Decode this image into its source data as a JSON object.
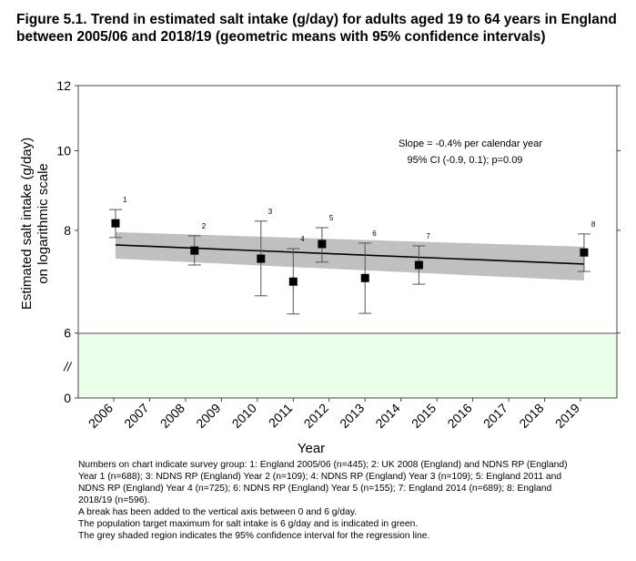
{
  "chart_data": {
    "type": "scatter",
    "title": "Figure 5.1. Trend in estimated salt intake (g/day) for adults aged 19 to 64 years in England between 2005/06 and 2018/19 (geometric means with 95% confidence intervals)",
    "xlabel": "Year",
    "ylabel": "Estimated salt intake (g/day) on logarithmic scale",
    "ylabel_lines": [
      "Estimated salt intake (g/day)",
      "on logarithmic scale"
    ],
    "y_scale": "log",
    "ylim": [
      6,
      12
    ],
    "y_ticks": [
      "12",
      "10",
      "8",
      "6"
    ],
    "y_break_label": "//",
    "y_zero_label": "0",
    "x_ticks": [
      "2006",
      "2007",
      "2008",
      "2009",
      "2010",
      "2011",
      "2012",
      "2013",
      "2014",
      "2015",
      "2016",
      "2017",
      "2018",
      "2019"
    ],
    "points": [
      {
        "label": "1",
        "x": 2006.05,
        "y": 8.16,
        "lo": 7.84,
        "hi": 8.48
      },
      {
        "label": "2",
        "x": 2008.25,
        "y": 7.56,
        "lo": 7.26,
        "hi": 7.88
      },
      {
        "label": "3",
        "x": 2010.1,
        "y": 7.39,
        "lo": 6.66,
        "hi": 8.21
      },
      {
        "label": "4",
        "x": 2011.0,
        "y": 6.93,
        "lo": 6.33,
        "hi": 7.6
      },
      {
        "label": "5",
        "x": 2011.8,
        "y": 7.7,
        "lo": 7.32,
        "hi": 8.06
      },
      {
        "label": "6",
        "x": 2013.0,
        "y": 7.0,
        "lo": 6.34,
        "hi": 7.72
      },
      {
        "label": "7",
        "x": 2014.5,
        "y": 7.26,
        "lo": 6.88,
        "hi": 7.66
      },
      {
        "label": "8",
        "x": 2019.1,
        "y": 7.52,
        "lo": 7.13,
        "hi": 7.92
      }
    ],
    "regression": {
      "x": [
        2006.05,
        2019.1
      ],
      "y": [
        7.68,
        7.28
      ]
    },
    "ci_band": {
      "x": [
        2006.05,
        2019.1
      ],
      "upper": [
        7.96,
        7.64
      ],
      "lower": [
        7.39,
        6.95
      ]
    },
    "target_region": {
      "from": 0,
      "to": 6,
      "color": "#eaffea"
    },
    "band_color": "#c0c0c0",
    "annotation": [
      "Slope = -0.4% per calendar year",
      "95% CI (-0.9, 0.1);   p=0.09"
    ],
    "grid": false
  },
  "notes": [
    "Numbers on chart indicate survey group: 1: England 2005/06 (n=445); 2: UK 2008 (England) and NDNS RP (England) Year 1 (n=688); 3: NDNS RP (England) Year 2 (n=109); 4: NDNS RP (England) Year 3 (n=109); 5: England 2011 and NDNS RP (England) Year 4 (n=725); 6: NDNS RP (England) Year 5 (n=155); 7: England 2014 (n=689); 8: England 2018/19 (n=596).",
    "A break has been added to the vertical axis between 0 and 6 g/day.",
    "The population target maximum for salt intake is 6 g/day and is indicated in green.",
    "The grey shaded region indicates the 95% confidence interval for the regression line."
  ]
}
